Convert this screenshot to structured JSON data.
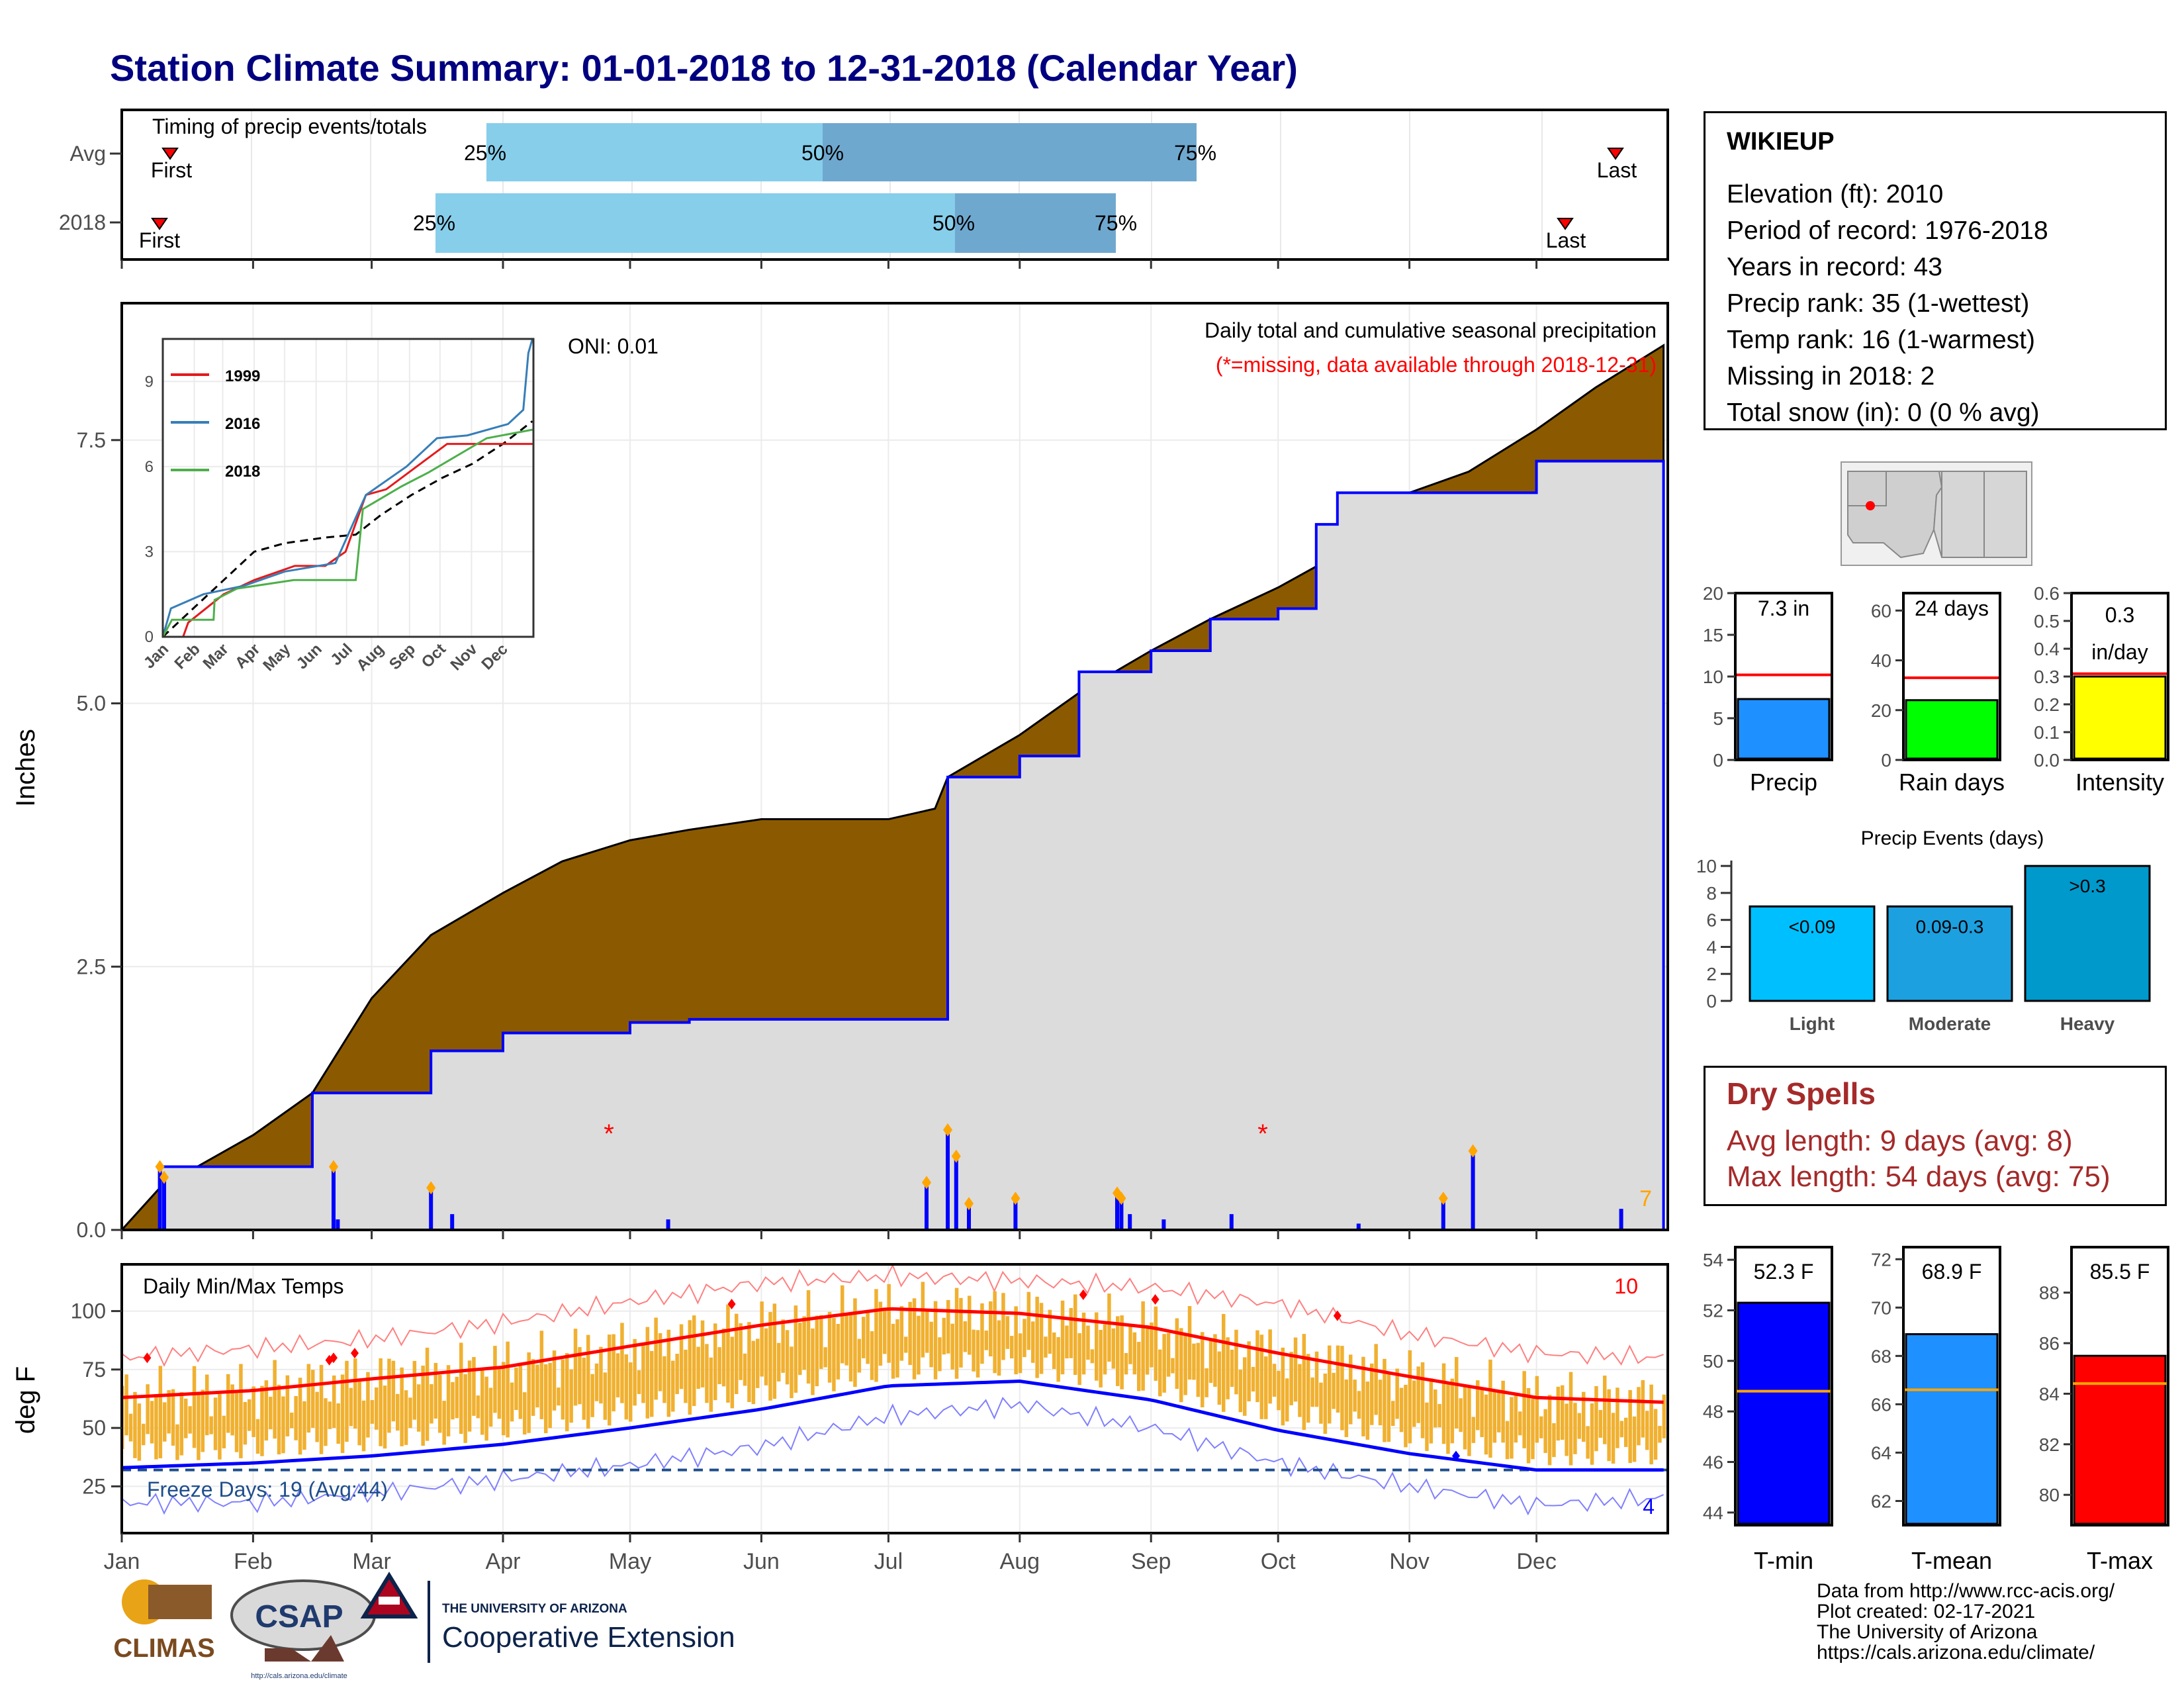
{
  "title": "Station Climate Summary: 01-01-2018 to 12-31-2018 (Calendar Year)",
  "colors": {
    "title": "#000080",
    "brown": "#8B5A00",
    "green": "#008000",
    "blue": "#0000FF",
    "gray": "#DCDCDC",
    "light_blue": "#87CEEB",
    "steel_blue": "#6FA8CF",
    "orange": "#F0B030",
    "red": "#FF0000"
  },
  "timing_panel": {
    "label": "Timing of precip events/totals",
    "rows": [
      {
        "name": "Avg",
        "first_label": "First",
        "last_label": "Last",
        "p25": "25%",
        "p50": "50%",
        "p75": "75%"
      },
      {
        "name": "2018",
        "first_label": "First",
        "last_label": "Last",
        "p25": "25%",
        "p50": "50%",
        "p75": "75%"
      }
    ]
  },
  "station": {
    "name": "WIKIEUP",
    "lines": [
      "Elevation (ft): 2010",
      "Period of record: 1976-2018",
      "Years in record: 43",
      "Precip rank: 35 (1-wettest)",
      "Temp rank: 16 (1-warmest)",
      "Missing in 2018: 2",
      "Total snow (in): 0 (0 % avg)"
    ]
  },
  "precip_panel": {
    "ylabel": "Inches",
    "oni": "ONI: 0.01",
    "title1": "Daily total and cumulative seasonal precipitation",
    "title2": "(*=missing, data available through 2018-12-31)",
    "corner": "7",
    "missing": "*",
    "y_ticks": [
      "0.0",
      "2.5",
      "5.0",
      "7.5"
    ]
  },
  "inset": {
    "legend": [
      "1999",
      "2016",
      "2018"
    ],
    "y_ticks": [
      "0",
      "3",
      "6",
      "9"
    ],
    "x_ticks": [
      "Jan",
      "Feb",
      "Mar",
      "Apr",
      "May",
      "Jun",
      "Jul",
      "Aug",
      "Sep",
      "Oct",
      "Nov",
      "Dec"
    ]
  },
  "temp_panel": {
    "ylabel": "deg F",
    "title": "Daily Min/Max Temps",
    "freeze": "Freeze Days: 19 (Avg:44)",
    "corner_top": "10",
    "corner_bottom": "4",
    "y_ticks": [
      "25",
      "50",
      "75",
      "100"
    ]
  },
  "months": [
    "Jan",
    "Feb",
    "Mar",
    "Apr",
    "May",
    "Jun",
    "Jul",
    "Aug",
    "Sep",
    "Oct",
    "Nov",
    "Dec"
  ],
  "mini_bars": {
    "precip": {
      "label": "Precip",
      "value_text": "7.3 in",
      "ticks": [
        "0",
        "5",
        "10",
        "15",
        "20"
      ]
    },
    "raindays": {
      "label": "Rain days",
      "value_text": "24 days",
      "ticks": [
        "0",
        "20",
        "40",
        "60"
      ]
    },
    "intensity": {
      "label": "Intensity",
      "value_text1": "0.3",
      "value_text2": "in/day",
      "ticks": [
        "0.0",
        "0.1",
        "0.2",
        "0.3",
        "0.4",
        "0.5",
        "0.6"
      ]
    }
  },
  "events": {
    "title": "Precip Events (days)",
    "bars": [
      {
        "label": "Light",
        "text": "<0.09"
      },
      {
        "label": "Moderate",
        "text": "0.09-0.3"
      },
      {
        "label": "Heavy",
        "text": ">0.3"
      }
    ],
    "ticks": [
      "0",
      "2",
      "4",
      "6",
      "8",
      "10"
    ]
  },
  "dry_spells": {
    "title": "Dry Spells",
    "avg": "Avg length: 9 days (avg: 8)",
    "max": "Max length: 54 days (avg: 75)"
  },
  "temp_bars": {
    "tmin": {
      "label": "T-min",
      "value_text": "52.3 F",
      "ticks": [
        "44",
        "46",
        "48",
        "50",
        "52",
        "54"
      ]
    },
    "tmean": {
      "label": "T-mean",
      "value_text": "68.9 F",
      "ticks": [
        "62",
        "64",
        "66",
        "68",
        "70",
        "72"
      ]
    },
    "tmax": {
      "label": "T-max",
      "value_text": "85.5 F",
      "ticks": [
        "80",
        "82",
        "84",
        "86",
        "88"
      ]
    }
  },
  "credits": [
    "Data from http://www.rcc-acis.org/",
    "Plot created: 02-17-2021",
    "The University of Arizona",
    "https://cals.arizona.edu/climate/"
  ],
  "logos": {
    "climas": "CLIMAS",
    "csap": "CSAP",
    "csap_url": "http://cals.arizona.edu/climate",
    "ua_line1": "THE UNIVERSITY OF ARIZONA",
    "ua_line2": "Cooperative Extension"
  },
  "chart_data": [
    {
      "type": "area",
      "title": "Daily total and cumulative seasonal precipitation",
      "ylabel": "Inches",
      "ylim": [
        0,
        8.8
      ],
      "x": [
        "01-01",
        "01-10",
        "02-01",
        "02-15",
        "03-01",
        "03-15",
        "04-01",
        "04-15",
        "05-01",
        "05-15",
        "06-01",
        "06-15",
        "07-01",
        "07-12",
        "07-15",
        "08-01",
        "08-15",
        "09-01",
        "09-15",
        "10-01",
        "10-10",
        "10-15",
        "11-01",
        "11-15",
        "12-01",
        "12-15",
        "12-31"
      ],
      "series": [
        {
          "name": "Avg",
          "values": [
            0.0,
            0.4,
            0.9,
            1.3,
            2.2,
            2.8,
            3.2,
            3.5,
            3.7,
            3.8,
            3.9,
            3.9,
            3.9,
            4.0,
            4.3,
            4.7,
            5.1,
            5.5,
            5.8,
            6.1,
            6.3,
            6.6,
            7.0,
            7.2,
            7.6,
            8.0,
            8.4
          ]
        },
        {
          "name": "2018",
          "values": [
            0.0,
            0.6,
            0.6,
            1.3,
            1.3,
            1.7,
            1.87,
            1.87,
            1.97,
            2.0,
            2.0,
            2.0,
            2.0,
            2.0,
            4.3,
            4.5,
            5.3,
            5.5,
            5.8,
            5.9,
            6.7,
            7.0,
            7.0,
            7.0,
            7.3,
            7.3,
            7.3
          ]
        }
      ]
    },
    {
      "type": "line",
      "title": "Daily Min/Max Temps",
      "ylabel": "deg F",
      "x": [
        "Jan",
        "Feb",
        "Mar",
        "Apr",
        "May",
        "Jun",
        "Jul",
        "Aug",
        "Sep",
        "Oct",
        "Nov",
        "Dec",
        "Dec-31"
      ],
      "series": [
        {
          "name": "Normal max",
          "values": [
            63,
            66,
            71,
            76,
            85,
            94,
            101,
            99,
            93,
            82,
            72,
            63,
            61
          ]
        },
        {
          "name": "Normal min",
          "values": [
            33,
            35,
            38,
            43,
            50,
            58,
            68,
            70,
            62,
            49,
            39,
            32,
            32
          ]
        },
        {
          "name": "Record max",
          "values": [
            80,
            84,
            88,
            95,
            104,
            112,
            115,
            113,
            110,
            103,
            90,
            82,
            80
          ]
        },
        {
          "name": "Record min",
          "values": [
            18,
            18,
            22,
            28,
            34,
            42,
            55,
            60,
            50,
            35,
            25,
            17,
            20
          ]
        }
      ],
      "freeze_line": 32,
      "ylim": [
        5,
        120
      ]
    }
  ]
}
